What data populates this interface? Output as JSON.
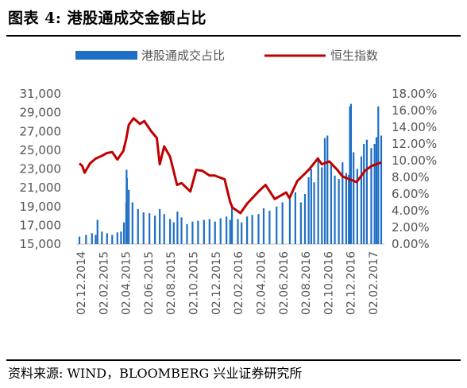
{
  "figure": {
    "title": "图表 4:  港股通成交金额占比",
    "source": "资料来源:  WIND，BLOOMBERG 兴业证券研究所"
  },
  "chart_data": {
    "type": "bar+line",
    "legend": {
      "placement": "top",
      "items": [
        "港股通成交占比",
        "恒生指数"
      ]
    },
    "left_axis": {
      "min": 15000,
      "max": 31000,
      "ticks": [
        "15,000",
        "17,000",
        "19,000",
        "21,000",
        "23,000",
        "25,000",
        "27,000",
        "29,000",
        "31,000"
      ]
    },
    "right_axis": {
      "min": 0,
      "max": 0.18,
      "ticks": [
        "0.00%",
        "2.00%",
        "4.00%",
        "6.00%",
        "8.00%",
        "10.00%",
        "12.00%",
        "14.00%",
        "16.00%",
        "18.00%"
      ]
    },
    "x_ticks": [
      "02.12.2014",
      "02.02.2015",
      "02.04.2015",
      "02.06.2015",
      "02.08.2015",
      "02.10.2015",
      "02.12.2015",
      "02.02.2016",
      "02.04.2016",
      "02.06.2016",
      "02.08.2016",
      "02.10.2016",
      "02.12.2016",
      "02.02.2017"
    ],
    "x_range": [
      "2014-12-02",
      "2017-02-28"
    ],
    "colors": {
      "bars": "#1f6fc4",
      "line": "#c00000"
    },
    "series": [
      {
        "name": "港股通成交占比",
        "type": "bar",
        "axis": "right",
        "points": [
          [
            "2014-12-02",
            0.009
          ],
          [
            "2014-12-20",
            0.011
          ],
          [
            "2015-01-05",
            0.013
          ],
          [
            "2015-01-15",
            0.011
          ],
          [
            "2015-01-20",
            0.029
          ],
          [
            "2015-02-01",
            0.015
          ],
          [
            "2015-02-15",
            0.013
          ],
          [
            "2015-03-01",
            0.011
          ],
          [
            "2015-03-15",
            0.014
          ],
          [
            "2015-03-25",
            0.015
          ],
          [
            "2015-04-02",
            0.026
          ],
          [
            "2015-04-08",
            0.05
          ],
          [
            "2015-04-09",
            0.089
          ],
          [
            "2015-04-10",
            0.079
          ],
          [
            "2015-04-15",
            0.065
          ],
          [
            "2015-04-25",
            0.05
          ],
          [
            "2015-05-10",
            0.042
          ],
          [
            "2015-05-25",
            0.038
          ],
          [
            "2015-06-10",
            0.037
          ],
          [
            "2015-06-25",
            0.034
          ],
          [
            "2015-07-08",
            0.042
          ],
          [
            "2015-07-20",
            0.036
          ],
          [
            "2015-08-05",
            0.03
          ],
          [
            "2015-08-15",
            0.026
          ],
          [
            "2015-08-25",
            0.039
          ],
          [
            "2015-09-05",
            0.032
          ],
          [
            "2015-09-20",
            0.024
          ],
          [
            "2015-10-05",
            0.027
          ],
          [
            "2015-10-20",
            0.028
          ],
          [
            "2015-11-05",
            0.029
          ],
          [
            "2015-11-20",
            0.03
          ],
          [
            "2015-12-05",
            0.027
          ],
          [
            "2015-12-20",
            0.031
          ],
          [
            "2016-01-05",
            0.033
          ],
          [
            "2016-01-15",
            0.029
          ],
          [
            "2016-01-20",
            0.046
          ],
          [
            "2016-02-05",
            0.03
          ],
          [
            "2016-02-15",
            0.026
          ],
          [
            "2016-03-01",
            0.033
          ],
          [
            "2016-03-15",
            0.035
          ],
          [
            "2016-04-01",
            0.036
          ],
          [
            "2016-04-15",
            0.043
          ],
          [
            "2016-05-01",
            0.04
          ],
          [
            "2016-05-20",
            0.045
          ],
          [
            "2016-06-05",
            0.05
          ],
          [
            "2016-06-25",
            0.054
          ],
          [
            "2016-07-10",
            0.062
          ],
          [
            "2016-07-25",
            0.05
          ],
          [
            "2016-08-05",
            0.06
          ],
          [
            "2016-08-15",
            0.08
          ],
          [
            "2016-08-22",
            0.09
          ],
          [
            "2016-08-30",
            0.074
          ],
          [
            "2016-09-10",
            0.104
          ],
          [
            "2016-09-20",
            0.092
          ],
          [
            "2016-09-28",
            0.127
          ],
          [
            "2016-10-05",
            0.13
          ],
          [
            "2016-10-15",
            0.095
          ],
          [
            "2016-10-25",
            0.082
          ],
          [
            "2016-11-05",
            0.078
          ],
          [
            "2016-11-15",
            0.098
          ],
          [
            "2016-11-25",
            0.085
          ],
          [
            "2016-12-02",
            0.083
          ],
          [
            "2016-12-05",
            0.165
          ],
          [
            "2016-12-08",
            0.168
          ],
          [
            "2016-12-15",
            0.11
          ],
          [
            "2016-12-25",
            0.09
          ],
          [
            "2017-01-05",
            0.105
          ],
          [
            "2017-01-12",
            0.12
          ],
          [
            "2017-01-20",
            0.125
          ],
          [
            "2017-02-01",
            0.115
          ],
          [
            "2017-02-10",
            0.12
          ],
          [
            "2017-02-15",
            0.128
          ],
          [
            "2017-02-20",
            0.165
          ],
          [
            "2017-02-28",
            0.13
          ]
        ]
      },
      {
        "name": "恒生指数",
        "type": "line",
        "axis": "left",
        "points": [
          [
            "2014-12-02",
            23600
          ],
          [
            "2014-12-10",
            23300
          ],
          [
            "2014-12-16",
            22600
          ],
          [
            "2014-12-31",
            23600
          ],
          [
            "2015-01-15",
            24100
          ],
          [
            "2015-02-01",
            24400
          ],
          [
            "2015-02-15",
            24700
          ],
          [
            "2015-03-01",
            24800
          ],
          [
            "2015-03-15",
            24000
          ],
          [
            "2015-03-31",
            24900
          ],
          [
            "2015-04-08",
            26200
          ],
          [
            "2015-04-15",
            27700
          ],
          [
            "2015-04-28",
            28400
          ],
          [
            "2015-05-15",
            27800
          ],
          [
            "2015-05-27",
            28100
          ],
          [
            "2015-06-15",
            27000
          ],
          [
            "2015-06-30",
            26300
          ],
          [
            "2015-07-08",
            23500
          ],
          [
            "2015-07-20",
            25400
          ],
          [
            "2015-08-05",
            24300
          ],
          [
            "2015-08-24",
            21300
          ],
          [
            "2015-09-05",
            21500
          ],
          [
            "2015-09-29",
            20600
          ],
          [
            "2015-10-15",
            22900
          ],
          [
            "2015-11-01",
            22800
          ],
          [
            "2015-11-20",
            22300
          ],
          [
            "2015-12-04",
            22300
          ],
          [
            "2015-12-31",
            21900
          ],
          [
            "2016-01-15",
            19500
          ],
          [
            "2016-01-21",
            18900
          ],
          [
            "2016-02-12",
            18300
          ],
          [
            "2016-03-01",
            19300
          ],
          [
            "2016-04-01",
            20600
          ],
          [
            "2016-04-20",
            21300
          ],
          [
            "2016-05-15",
            19800
          ],
          [
            "2016-06-15",
            20500
          ],
          [
            "2016-06-24",
            19900
          ],
          [
            "2016-07-15",
            21700
          ],
          [
            "2016-08-15",
            22900
          ],
          [
            "2016-09-09",
            24100
          ],
          [
            "2016-09-20",
            23500
          ],
          [
            "2016-10-10",
            23800
          ],
          [
            "2016-11-01",
            22900
          ],
          [
            "2016-11-15",
            22200
          ],
          [
            "2016-12-23",
            21600
          ],
          [
            "2017-01-15",
            22800
          ],
          [
            "2017-02-01",
            23300
          ],
          [
            "2017-02-28",
            23700
          ]
        ]
      }
    ]
  }
}
